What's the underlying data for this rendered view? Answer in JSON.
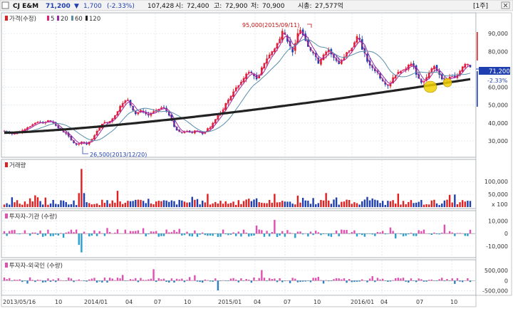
{
  "header": {
    "name": "CJ E&M",
    "price": "71,200",
    "change_arrow": "▼",
    "change": "1,700",
    "change_pct": "(-2.33%)",
    "volume": "107,428",
    "open_label": "시:",
    "open": "72,400",
    "high_label": "고:",
    "high": "72,900",
    "low_label": "저:",
    "low": "70,900",
    "mcap_label": "시총:",
    "mcap": "27,577억",
    "period": "[1주]"
  },
  "colors": {
    "up": "#e02020",
    "down": "#1f3fb0",
    "ma5": "#e0207a",
    "ma20": "#9c2aa0",
    "ma60": "#5a8fa8",
    "ma120": "#222222",
    "inst": "#e050b0",
    "inst_neg": "#2aa0d0",
    "foreign": "#e050b0",
    "foreign_neg": "#3080c0",
    "highlight": "#f0d000"
  },
  "price_panel": {
    "legend": {
      "title": "가격(수정)",
      "ma5": "5",
      "ma20": "20",
      "ma60": "60",
      "ma120": "120"
    },
    "max_note": "95,000(2015/09/11)",
    "min_note": "26,500(2013/12/20)",
    "current_label": "71,200",
    "current_pct": "-2.33%"
  },
  "volume_panel": {
    "title": "거래량",
    "unit": "x 100"
  },
  "inst_panel": {
    "title": "투자자-기관 (수량)"
  },
  "foreign_panel": {
    "title": "투자자-외국인 (수량)"
  },
  "x_labels": [
    "2013/05/16",
    "10",
    "2014/01",
    "04",
    "07",
    "10",
    "2015/01",
    "04",
    "07",
    "10",
    "2016/01",
    "04",
    "07",
    "10"
  ],
  "chart_data": [
    {
      "type": "line",
      "title": "가격(수정)",
      "series_names": [
        "5",
        "20",
        "60",
        "120"
      ],
      "x_range": [
        "2013/05/16",
        "2016/11"
      ],
      "ylim": [
        22000,
        100000
      ],
      "y_ticks": [
        30000,
        40000,
        50000,
        60000,
        70000,
        80000,
        90000
      ],
      "y_tick_labels": [
        "30,000",
        "40,000",
        "50,000",
        "60,000",
        "70,000",
        "80,000",
        "90,000"
      ],
      "close_weekly": [
        35500,
        35000,
        34300,
        33800,
        34000,
        34500,
        35200,
        35800,
        36500,
        37500,
        38000,
        39200,
        40000,
        40600,
        40200,
        39800,
        40500,
        41500,
        40800,
        40000,
        38500,
        37000,
        35800,
        34800,
        34000,
        32500,
        30500,
        28800,
        27800,
        28500,
        29500,
        29000,
        28000,
        29500,
        31000,
        33000,
        35500,
        37500,
        39500,
        40500,
        40000,
        41000,
        42500,
        44200,
        46500,
        49500,
        51000,
        52500,
        53000,
        49800,
        47000,
        45000,
        45800,
        47200,
        46200,
        45000,
        44200,
        45500,
        46500,
        47200,
        47800,
        48600,
        48500,
        46700,
        44200,
        41200,
        37800,
        35800,
        35000,
        34600,
        35000,
        35500,
        34800,
        34500,
        35800,
        35500,
        34600,
        33800,
        35200,
        37000,
        37500,
        40000,
        42000,
        44200,
        45500,
        47500,
        51000,
        53000,
        55000,
        57500,
        59800,
        61000,
        63000,
        65000,
        67500,
        68500,
        67800,
        66200,
        64500,
        66500,
        71000,
        73500,
        76000,
        78200,
        80000,
        81500,
        84500,
        87000,
        91500,
        89500,
        85500,
        83000,
        79500,
        84500,
        90200,
        92000,
        89200,
        86000,
        82600,
        80500,
        79000,
        77000,
        73200,
        75800,
        78200,
        79800,
        81000,
        78400,
        76500,
        74800,
        73000,
        75000,
        77000,
        79500,
        80500,
        82000,
        85000,
        88500,
        86500,
        81000,
        79000,
        74300,
        72200,
        70800,
        69000,
        68200,
        65000,
        63400,
        61500,
        60800,
        62300,
        65500,
        66800,
        68500,
        69000,
        69900,
        70400,
        72500,
        73200,
        71500,
        67000,
        64800,
        62500,
        63000,
        65500,
        68000,
        70500,
        71800,
        69200,
        67000,
        64500,
        63800,
        64200,
        65800,
        66000,
        65200,
        67000,
        69000,
        71500,
        73000,
        72900,
        71200
      ],
      "ma120_start": 34500,
      "ma120_end": 64500
    },
    {
      "type": "bar",
      "title": "거래량",
      "unit": "x 100",
      "ylim": [
        0,
        165000
      ],
      "y_ticks": [
        50000,
        100000
      ],
      "y_tick_labels": [
        "50,000",
        "100,000"
      ],
      "notable_values": [
        {
          "date": "2013/12",
          "value": 150000
        }
      ]
    },
    {
      "type": "bar",
      "title": "투자자-기관 (수량)",
      "ylim": [
        -18000,
        16000
      ],
      "y_ticks": [
        10000,
        0,
        -10000
      ],
      "y_tick_labels": [
        "10,000",
        "0",
        "-10,000"
      ]
    },
    {
      "type": "bar",
      "title": "투자자-외국인 (수량)",
      "ylim": [
        -650000,
        850000
      ],
      "y_ticks": [
        500000,
        0,
        -500000
      ],
      "y_tick_labels": [
        "500,000",
        "0",
        "-500,000"
      ]
    }
  ]
}
